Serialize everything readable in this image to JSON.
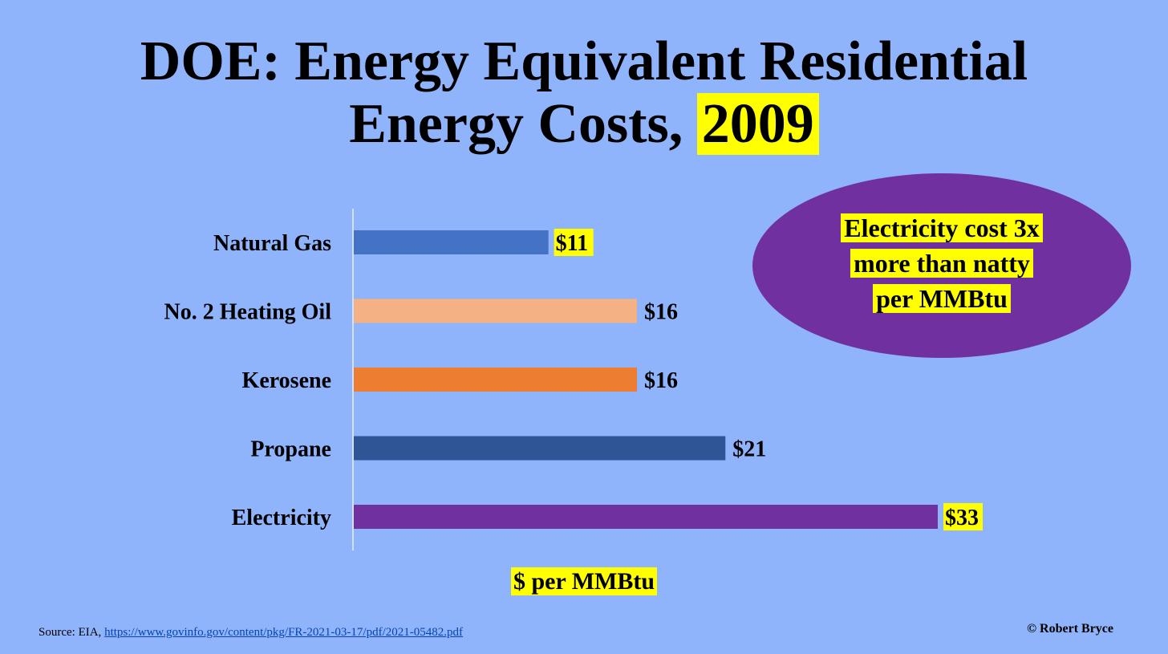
{
  "title": {
    "line1": "DOE: Energy Equivalent Residential",
    "line2": "Energy Costs,",
    "year": "2009"
  },
  "callout": {
    "line1": "Electricity cost 3x",
    "line2": "more than natty",
    "line3": "per MMBtu"
  },
  "footer": {
    "source_prefix": "Source: EIA,",
    "source_link": "https://www.govinfo.gov/content/pkg/FR-2021-03-17/pdf/2021-05482.pdf",
    "credit": "© Robert Bryce"
  },
  "colors": {
    "background": "#8fb4fb",
    "highlight": "#ffff00",
    "bar_colors": [
      "#4472c4",
      "#f4b183",
      "#ed7d31",
      "#2f5597",
      "#7030a0"
    ]
  },
  "chart_data": {
    "type": "bar",
    "orientation": "horizontal",
    "categories": [
      "Natural Gas",
      "No. 2 Heating Oil",
      "Kerosene",
      "Propane",
      "Electricity"
    ],
    "values": [
      11,
      16,
      16,
      21,
      33
    ],
    "value_labels": [
      "$11",
      "$16",
      "$16",
      "$21",
      "$33"
    ],
    "highlighted_labels": [
      true,
      false,
      false,
      false,
      true
    ],
    "xlabel": "$ per MMBtu",
    "xlim": [
      0,
      36
    ],
    "grid": false
  }
}
